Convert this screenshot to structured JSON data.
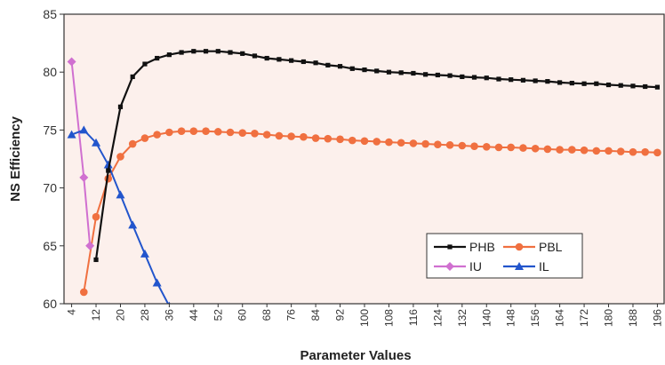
{
  "chart_data": {
    "type": "line",
    "title": "",
    "xlabel": "Parameter Values",
    "ylabel": "NS Efficiency",
    "ylim": [
      60,
      85
    ],
    "yticks": [
      60,
      65,
      70,
      75,
      80,
      85
    ],
    "xlim": [
      1.5,
      198.5
    ],
    "xticks": [
      4,
      12,
      20,
      28,
      36,
      44,
      52,
      60,
      68,
      76,
      84,
      92,
      100,
      108,
      116,
      124,
      132,
      140,
      148,
      156,
      164,
      172,
      180,
      188,
      196
    ],
    "grid": false,
    "legend_position": "bottom-right",
    "background_color": "#fcf0ec",
    "series": [
      {
        "name": "PHB",
        "color": "#111111",
        "marker": "square",
        "x": [
          12,
          16,
          20,
          24,
          28,
          32,
          36,
          40,
          44,
          48,
          52,
          56,
          60,
          64,
          68,
          72,
          76,
          80,
          84,
          88,
          92,
          96,
          100,
          104,
          108,
          112,
          116,
          120,
          124,
          128,
          132,
          136,
          140,
          144,
          148,
          152,
          156,
          160,
          164,
          168,
          172,
          176,
          180,
          184,
          188,
          192,
          196
        ],
        "values": [
          63.8,
          71.5,
          77.0,
          79.6,
          80.7,
          81.2,
          81.5,
          81.7,
          81.8,
          81.8,
          81.8,
          81.7,
          81.6,
          81.4,
          81.2,
          81.1,
          81.0,
          80.9,
          80.8,
          80.6,
          80.5,
          80.3,
          80.2,
          80.1,
          80.0,
          79.95,
          79.9,
          79.8,
          79.75,
          79.7,
          79.6,
          79.55,
          79.5,
          79.4,
          79.35,
          79.3,
          79.25,
          79.2,
          79.1,
          79.05,
          79.0,
          79.0,
          78.9,
          78.85,
          78.8,
          78.75,
          78.7
        ]
      },
      {
        "name": "PBL",
        "color": "#f07040",
        "marker": "circle",
        "x": [
          8,
          12,
          16,
          20,
          24,
          28,
          32,
          36,
          40,
          44,
          48,
          52,
          56,
          60,
          64,
          68,
          72,
          76,
          80,
          84,
          88,
          92,
          96,
          100,
          104,
          108,
          112,
          116,
          120,
          124,
          128,
          132,
          136,
          140,
          144,
          148,
          152,
          156,
          160,
          164,
          168,
          172,
          176,
          180,
          184,
          188,
          192,
          196
        ],
        "values": [
          61.0,
          67.5,
          70.8,
          72.7,
          73.8,
          74.3,
          74.6,
          74.8,
          74.9,
          74.9,
          74.9,
          74.85,
          74.8,
          74.75,
          74.7,
          74.6,
          74.5,
          74.45,
          74.4,
          74.3,
          74.25,
          74.2,
          74.1,
          74.05,
          74.0,
          73.95,
          73.9,
          73.85,
          73.8,
          73.75,
          73.7,
          73.65,
          73.6,
          73.55,
          73.5,
          73.5,
          73.45,
          73.4,
          73.35,
          73.3,
          73.3,
          73.25,
          73.2,
          73.2,
          73.15,
          73.1,
          73.1,
          73.05
        ]
      },
      {
        "name": "IU",
        "color": "#d070d0",
        "marker": "diamond",
        "x": [
          4,
          8,
          10
        ],
        "values": [
          80.9,
          70.9,
          65.0
        ]
      },
      {
        "name": "IL",
        "color": "#2255cc",
        "marker": "triangle",
        "x": [
          4,
          8,
          12,
          16,
          20,
          24,
          28,
          32,
          36
        ],
        "values": [
          74.6,
          75.0,
          73.9,
          72.0,
          69.4,
          66.8,
          64.3,
          61.8,
          59.8
        ]
      }
    ]
  }
}
